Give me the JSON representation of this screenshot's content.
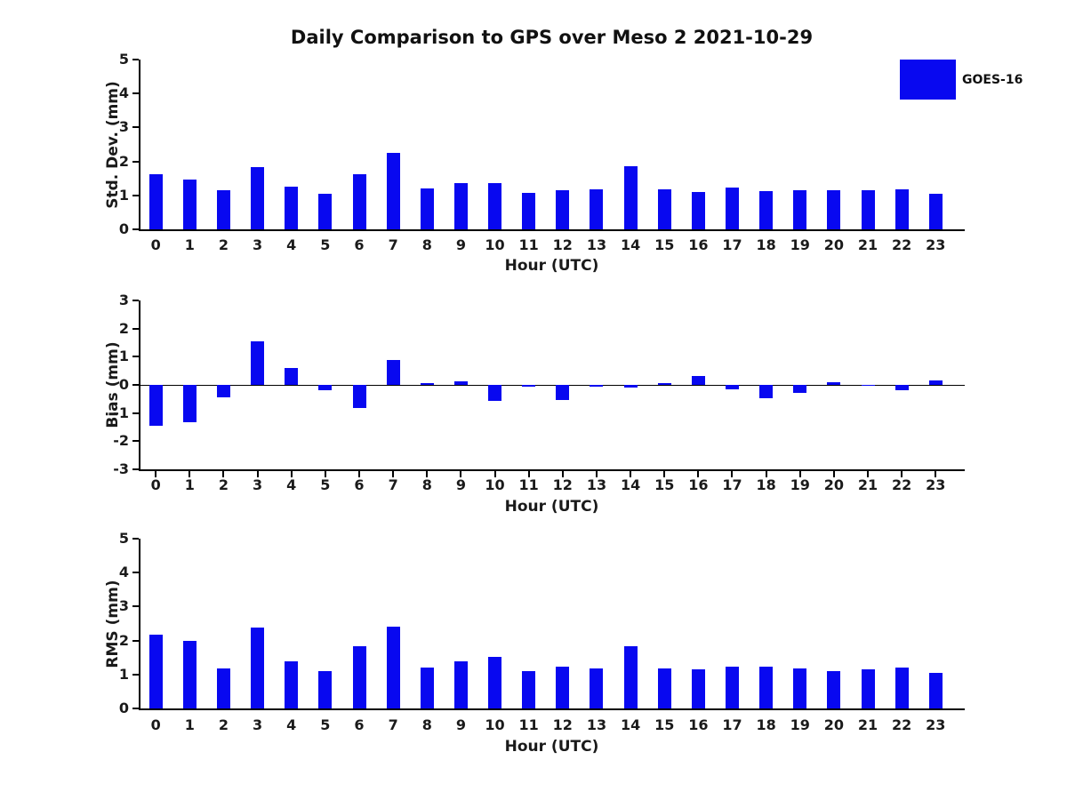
{
  "title": "Daily Comparison to GPS over Meso 2 2021-10-29",
  "legend": {
    "label": "GOES-16",
    "swatch_color": "#0808f0",
    "position": "top-right"
  },
  "colors": {
    "bar": "#0808f0",
    "axis": "#000000",
    "text": "#1a1a1a"
  },
  "chart_data": [
    {
      "type": "bar",
      "panel": "stddev",
      "ylabel": "Std. Dev. (mm)",
      "xlabel": "Hour (UTC)",
      "ylim": [
        0,
        5
      ],
      "yticks": [
        0,
        1,
        2,
        3,
        4,
        5
      ],
      "grid": false,
      "categories": [
        "0",
        "1",
        "2",
        "3",
        "4",
        "5",
        "6",
        "7",
        "8",
        "9",
        "10",
        "11",
        "12",
        "13",
        "14",
        "15",
        "16",
        "17",
        "18",
        "19",
        "20",
        "21",
        "22",
        "23"
      ],
      "series": [
        {
          "name": "GOES-16",
          "values": [
            1.63,
            1.46,
            1.14,
            1.84,
            1.26,
            1.06,
            1.63,
            2.24,
            1.21,
            1.37,
            1.37,
            1.08,
            1.14,
            1.18,
            1.87,
            1.18,
            1.1,
            1.24,
            1.12,
            1.14,
            1.15,
            1.16,
            1.19,
            1.04
          ]
        }
      ]
    },
    {
      "type": "bar",
      "panel": "bias",
      "ylabel": "Bias (mm)",
      "xlabel": "Hour (UTC)",
      "ylim": [
        -3,
        3
      ],
      "yticks": [
        -3,
        -2,
        -1,
        0,
        1,
        2,
        3
      ],
      "grid": false,
      "categories": [
        "0",
        "1",
        "2",
        "3",
        "4",
        "5",
        "6",
        "7",
        "8",
        "9",
        "10",
        "11",
        "12",
        "13",
        "14",
        "15",
        "16",
        "17",
        "18",
        "19",
        "20",
        "21",
        "22",
        "23"
      ],
      "series": [
        {
          "name": "GOES-16",
          "values": [
            -1.45,
            -1.32,
            -0.45,
            1.55,
            0.6,
            -0.2,
            -0.82,
            0.89,
            0.05,
            0.13,
            -0.57,
            -0.06,
            -0.54,
            -0.05,
            -0.08,
            0.05,
            0.33,
            -0.15,
            -0.47,
            -0.29,
            0.1,
            0.01,
            -0.18,
            0.15
          ]
        }
      ]
    },
    {
      "type": "bar",
      "panel": "rms",
      "ylabel": "RMS (mm)",
      "xlabel": "Hour (UTC)",
      "ylim": [
        0,
        5
      ],
      "yticks": [
        0,
        1,
        2,
        3,
        4,
        5
      ],
      "grid": false,
      "categories": [
        "0",
        "1",
        "2",
        "3",
        "4",
        "5",
        "6",
        "7",
        "8",
        "9",
        "10",
        "11",
        "12",
        "13",
        "14",
        "15",
        "16",
        "17",
        "18",
        "19",
        "20",
        "21",
        "22",
        "23"
      ],
      "series": [
        {
          "name": "GOES-16",
          "values": [
            2.17,
            2.0,
            1.19,
            2.39,
            1.38,
            1.09,
            1.83,
            2.41,
            1.21,
            1.38,
            1.51,
            1.09,
            1.24,
            1.17,
            1.84,
            1.19,
            1.14,
            1.24,
            1.22,
            1.17,
            1.11,
            1.15,
            1.2,
            1.05
          ]
        }
      ]
    }
  ]
}
